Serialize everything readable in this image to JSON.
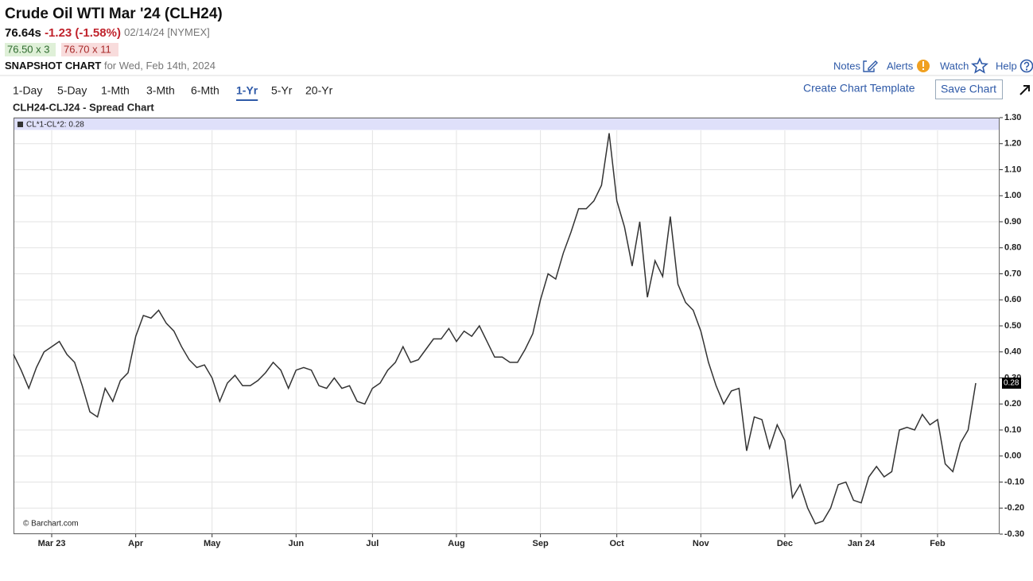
{
  "header": {
    "title": "Crude Oil WTI Mar '24 (CLH24)",
    "price": "76.64s",
    "change": "-1.23 (-1.58%)",
    "quote_info": "02/14/24 [NYMEX]",
    "bid": "76.50 x 3",
    "ask": "76.70 x 11",
    "snapshot_label": "SNAPSHOT CHART",
    "snapshot_date": "for Wed, Feb 14th, 2024"
  },
  "nav": {
    "links": [
      "Notes",
      "Alerts",
      "Watch",
      "Help"
    ]
  },
  "toolbar": {
    "tabs": [
      "1-Day",
      "5-Day",
      "1-Mth",
      "3-Mth",
      "6-Mth",
      "1-Yr",
      "5-Yr",
      "20-Yr"
    ],
    "active_tab": 5,
    "template_link": "Create Chart Template",
    "save_button": "Save Chart"
  },
  "chart_data": {
    "type": "line",
    "title": "CLH24-CLJ24 - Spread Chart",
    "legend": "CL*1-CL*2: 0.28",
    "credit": "© Barchart.com",
    "categories": [
      null,
      null,
      null,
      null,
      null,
      "Mar 23",
      null,
      null,
      null,
      null,
      null,
      null,
      null,
      null,
      null,
      null,
      "Apr",
      null,
      null,
      null,
      null,
      null,
      null,
      null,
      null,
      null,
      "May",
      null,
      null,
      null,
      null,
      null,
      null,
      null,
      null,
      null,
      null,
      "Jun",
      null,
      null,
      null,
      null,
      null,
      null,
      null,
      null,
      null,
      "Jul",
      null,
      null,
      null,
      null,
      null,
      null,
      null,
      null,
      null,
      null,
      "Aug",
      null,
      null,
      null,
      null,
      null,
      null,
      null,
      null,
      null,
      null,
      "Sep",
      null,
      null,
      null,
      null,
      null,
      null,
      null,
      null,
      null,
      "Oct",
      null,
      null,
      null,
      null,
      null,
      null,
      null,
      null,
      null,
      null,
      "Nov",
      null,
      null,
      null,
      null,
      null,
      null,
      null,
      null,
      null,
      null,
      "Dec",
      null,
      null,
      null,
      null,
      null,
      null,
      null,
      null,
      null,
      "Jan 24",
      null,
      null,
      null,
      null,
      null,
      null,
      null,
      null,
      null,
      "Feb",
      null,
      null,
      null,
      null,
      null
    ],
    "series": [
      {
        "name": "CL*1-CL*2",
        "color": "#333333",
        "values": [
          0.39,
          0.33,
          0.26,
          0.34,
          0.4,
          0.42,
          0.44,
          0.39,
          0.36,
          0.27,
          0.17,
          0.15,
          0.26,
          0.21,
          0.29,
          0.32,
          0.46,
          0.54,
          0.53,
          0.56,
          0.51,
          0.48,
          0.42,
          0.37,
          0.34,
          0.35,
          0.3,
          0.21,
          0.28,
          0.31,
          0.27,
          0.27,
          0.29,
          0.32,
          0.36,
          0.33,
          0.26,
          0.33,
          0.34,
          0.33,
          0.27,
          0.26,
          0.3,
          0.26,
          0.27,
          0.21,
          0.2,
          0.26,
          0.28,
          0.33,
          0.36,
          0.42,
          0.36,
          0.37,
          0.41,
          0.45,
          0.45,
          0.49,
          0.44,
          0.48,
          0.46,
          0.5,
          0.44,
          0.38,
          0.38,
          0.36,
          0.36,
          0.41,
          0.47,
          0.6,
          0.7,
          0.68,
          0.78,
          0.86,
          0.95,
          0.95,
          0.98,
          1.04,
          1.24,
          0.98,
          0.88,
          0.73,
          0.9,
          0.61,
          0.75,
          0.69,
          0.92,
          0.66,
          0.59,
          0.56,
          0.48,
          0.36,
          0.27,
          0.2,
          0.25,
          0.26,
          0.02,
          0.15,
          0.14,
          0.03,
          0.12,
          0.06,
          -0.16,
          -0.11,
          -0.2,
          -0.26,
          -0.25,
          -0.2,
          -0.11,
          -0.1,
          -0.17,
          -0.18,
          -0.08,
          -0.04,
          -0.08,
          -0.06,
          0.1,
          0.11,
          0.1,
          0.16,
          0.12,
          0.14,
          -0.03,
          -0.06,
          0.05,
          0.1,
          0.28
        ]
      }
    ],
    "ylim": [
      -0.3,
      1.3
    ],
    "yticks": [
      {
        "value": 1.3,
        "label": "1.30"
      },
      {
        "value": 1.2,
        "label": "1.20"
      },
      {
        "value": 1.1,
        "label": "1.10"
      },
      {
        "value": 1.0,
        "label": "1.00"
      },
      {
        "value": 0.9,
        "label": "0.90"
      },
      {
        "value": 0.8,
        "label": "0.80"
      },
      {
        "value": 0.7,
        "label": "0.70"
      },
      {
        "value": 0.6,
        "label": "0.60"
      },
      {
        "value": 0.5,
        "label": "0.50"
      },
      {
        "value": 0.4,
        "label": "0.40"
      },
      {
        "value": 0.3,
        "label": "0.30"
      },
      {
        "value": 0.2,
        "label": "0.20"
      },
      {
        "value": 0.1,
        "label": "0.10"
      },
      {
        "value": 0,
        "label": "0.00"
      },
      {
        "value": -0.1,
        "label": "-0.10"
      },
      {
        "value": -0.2,
        "label": "-0.20"
      },
      {
        "value": -0.3,
        "label": "-0.30"
      }
    ],
    "grid": true
  }
}
